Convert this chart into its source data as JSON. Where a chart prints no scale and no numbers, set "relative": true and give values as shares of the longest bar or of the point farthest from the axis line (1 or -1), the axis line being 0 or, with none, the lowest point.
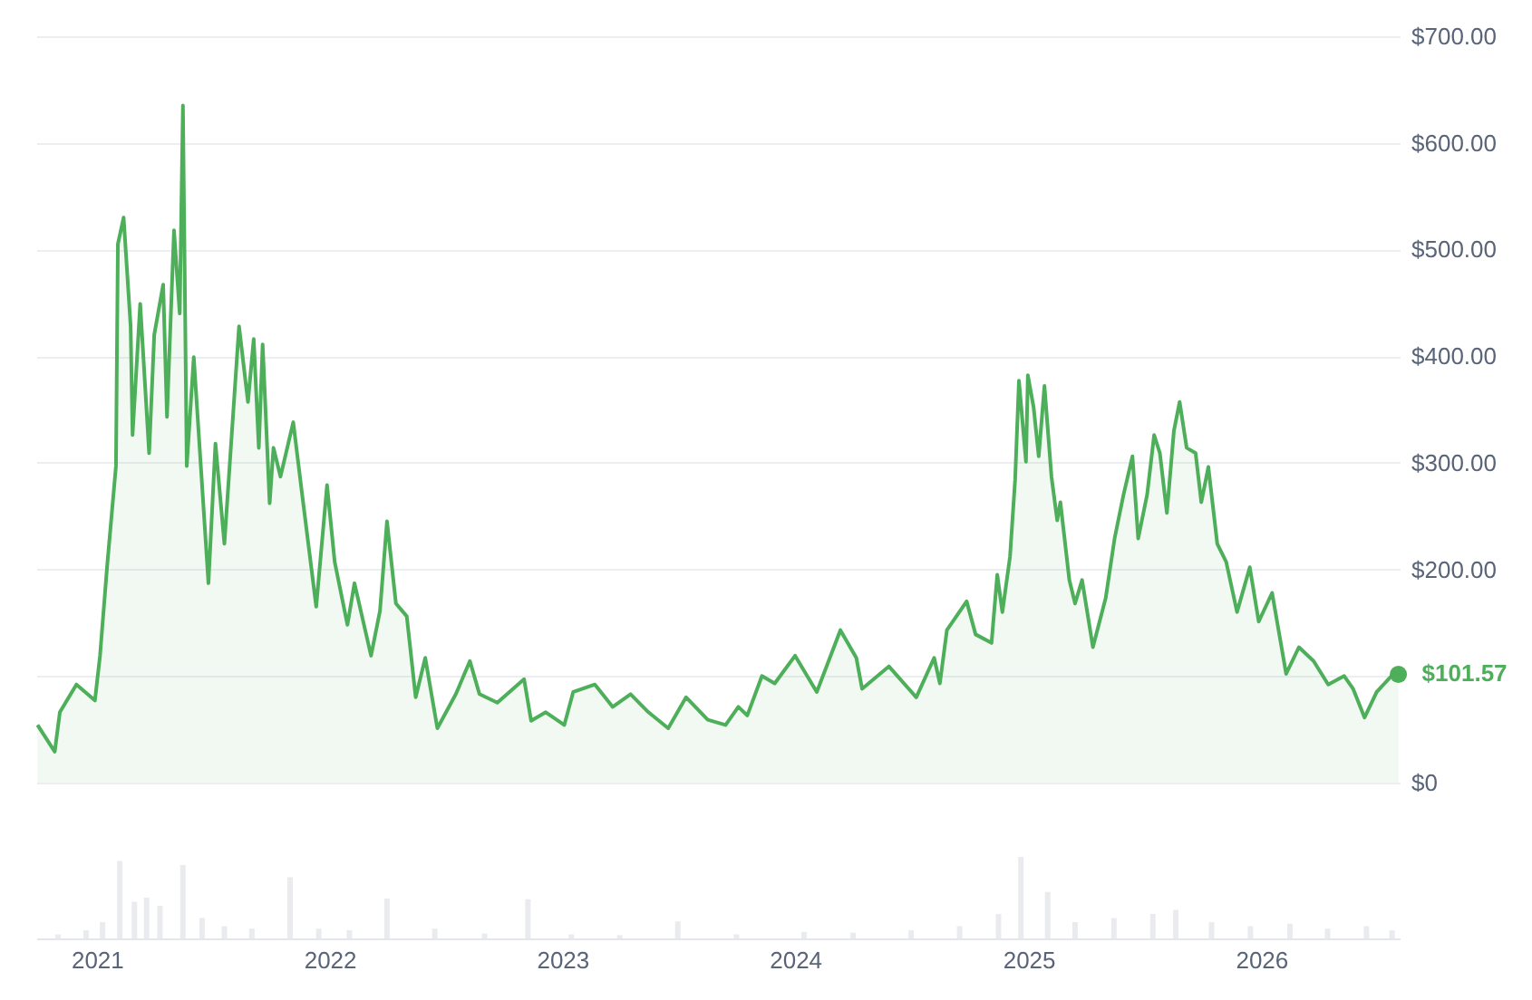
{
  "chart_data": [
    {
      "type": "area",
      "xlim": [
        "2020-09-28",
        "2026-08-06"
      ],
      "ylim": [
        0,
        700
      ],
      "yticks": [
        {
          "value": 0,
          "label": "$0"
        },
        {
          "value": 100,
          "label": null
        },
        {
          "value": 200,
          "label": "$200.00"
        },
        {
          "value": 300,
          "label": "$300.00"
        },
        {
          "value": 400,
          "label": "$400.00"
        },
        {
          "value": 500,
          "label": "$500.00"
        },
        {
          "value": 600,
          "label": "$600.00"
        },
        {
          "value": 700,
          "label": "$700.00"
        }
      ],
      "grid": "y",
      "tick_labels": "y",
      "x": [
        "2020-09-30",
        "2020-10-27",
        "2020-11-04",
        "2020-11-30",
        "2020-12-29",
        "2021-01-06",
        "2021-01-17",
        "2021-01-31",
        "2021-02-03",
        "2021-02-12",
        "2021-02-23",
        "2021-02-26",
        "2021-03-10",
        "2021-03-24",
        "2021-04-01",
        "2021-04-15",
        "2021-04-21",
        "2021-05-02",
        "2021-05-11",
        "2021-05-16",
        "2021-05-22",
        "2021-06-02",
        "2021-06-25",
        "2021-07-06",
        "2021-07-20",
        "2021-08-12",
        "2021-08-26",
        "2021-09-04",
        "2021-09-12",
        "2021-09-18",
        "2021-09-29",
        "2021-10-05",
        "2021-10-16",
        "2021-11-05",
        "2021-11-19",
        "2021-12-11",
        "2021-12-28",
        "2022-01-09",
        "2022-01-29",
        "2022-02-09",
        "2022-03-07",
        "2022-03-21",
        "2022-04-01",
        "2022-04-15",
        "2022-05-02",
        "2022-05-16",
        "2022-05-31",
        "2022-06-19",
        "2022-07-18",
        "2022-08-09",
        "2022-08-24",
        "2022-09-21",
        "2022-11-02",
        "2022-11-13",
        "2022-12-06",
        "2023-01-04",
        "2023-01-18",
        "2023-02-21",
        "2023-03-21",
        "2023-04-18",
        "2023-05-16",
        "2023-06-16",
        "2023-07-14",
        "2023-08-17",
        "2023-09-14",
        "2023-10-04",
        "2023-10-18",
        "2023-11-10",
        "2023-11-30",
        "2024-01-01",
        "2024-02-04",
        "2024-03-12",
        "2024-04-06",
        "2024-04-15",
        "2024-05-27",
        "2024-07-09",
        "2024-08-06",
        "2024-08-15",
        "2024-08-26",
        "2024-09-26",
        "2024-10-10",
        "2024-11-04",
        "2024-11-13",
        "2024-11-21",
        "2024-12-03",
        "2024-12-11",
        "2024-12-17",
        "2024-12-28",
        "2024-12-31",
        "2025-01-09",
        "2025-01-17",
        "2025-01-26",
        "2025-02-06",
        "2025-02-15",
        "2025-02-20",
        "2025-03-06",
        "2025-03-15",
        "2025-03-26",
        "2025-04-12",
        "2025-05-02",
        "2025-05-16",
        "2025-05-30",
        "2025-06-13",
        "2025-06-22",
        "2025-07-06",
        "2025-07-17",
        "2025-07-26",
        "2025-08-06",
        "2025-08-17",
        "2025-08-26",
        "2025-09-06",
        "2025-09-20",
        "2025-09-29",
        "2025-10-10",
        "2025-10-24",
        "2025-11-07",
        "2025-11-24",
        "2025-12-14",
        "2025-12-28",
        "2026-01-18",
        "2026-02-09",
        "2026-03-01",
        "2026-03-24",
        "2026-04-16",
        "2026-05-11",
        "2026-05-25",
        "2026-06-12",
        "2026-07-01",
        "2026-07-24",
        "2026-08-04"
      ],
      "series": [
        {
          "color": "#4eaf5a",
          "values": [
            54,
            29,
            66,
            92,
            77,
            119,
            202,
            297,
            505,
            530,
            428,
            326,
            449,
            309,
            420,
            467,
            343,
            518,
            440,
            635,
            297,
            399,
            187,
            318,
            224,
            428,
            357,
            416,
            314,
            411,
            262,
            314,
            287,
            338,
            270,
            165,
            279,
            207,
            148,
            187,
            119,
            161,
            245,
            168,
            156,
            80,
            117,
            51,
            83,
            114,
            83,
            75,
            97,
            58,
            66,
            54,
            85,
            92,
            71,
            83,
            66,
            51,
            80,
            59,
            54,
            71,
            63,
            100,
            93,
            119,
            85,
            143,
            117,
            88,
            109,
            80,
            117,
            93,
            143,
            170,
            139,
            131,
            195,
            160,
            212,
            284,
            377,
            301,
            382,
            352,
            306,
            372,
            287,
            246,
            263,
            190,
            168,
            190,
            127,
            173,
            229,
            270,
            306,
            229,
            270,
            326,
            309,
            253,
            330,
            357,
            314,
            309,
            263,
            296,
            224,
            207,
            160,
            202,
            151,
            178,
            102,
            127,
            114,
            92,
            100,
            88,
            61,
            85,
            100,
            101.57
          ]
        }
      ],
      "annotations": [
        {
          "text": "$101.57",
          "x": "2026-08-04",
          "y": 101.57
        }
      ]
    },
    {
      "type": "bar",
      "relative": true,
      "xlim": [
        "2020-09-28",
        "2026-08-06"
      ],
      "xticks": [
        "2021",
        "2022",
        "2023",
        "2024",
        "2025",
        "2026"
      ],
      "tick_labels": "x",
      "x": [
        "2020-11-01",
        "2020-12-15",
        "2021-01-10",
        "2021-02-06",
        "2021-03-01",
        "2021-03-20",
        "2021-04-10",
        "2021-05-16",
        "2021-06-15",
        "2021-07-20",
        "2021-09-01",
        "2021-10-31",
        "2021-12-15",
        "2022-02-01",
        "2022-04-01",
        "2022-06-15",
        "2022-09-01",
        "2022-11-08",
        "2023-01-15",
        "2023-04-01",
        "2023-07-01",
        "2023-10-01",
        "2024-01-15",
        "2024-04-01",
        "2024-07-01",
        "2024-09-15",
        "2024-11-15",
        "2024-12-20",
        "2025-01-31",
        "2025-03-15",
        "2025-05-15",
        "2025-07-15",
        "2025-08-20",
        "2025-10-15",
        "2025-12-15",
        "2026-02-15",
        "2026-04-15",
        "2026-06-15",
        "2026-07-25"
      ],
      "series": [
        {
          "color": "#e9ebef",
          "values": [
            0.05,
            0.1,
            0.2,
            0.95,
            0.45,
            0.5,
            0.4,
            0.9,
            0.25,
            0.15,
            0.12,
            0.75,
            0.12,
            0.1,
            0.49,
            0.12,
            0.06,
            0.48,
            0.05,
            0.04,
            0.21,
            0.05,
            0.08,
            0.07,
            0.1,
            0.15,
            0.3,
            1,
            0.57,
            0.2,
            0.25,
            0.3,
            0.35,
            0.2,
            0.15,
            0.18,
            0.12,
            0.15,
            0.1
          ]
        }
      ]
    }
  ]
}
